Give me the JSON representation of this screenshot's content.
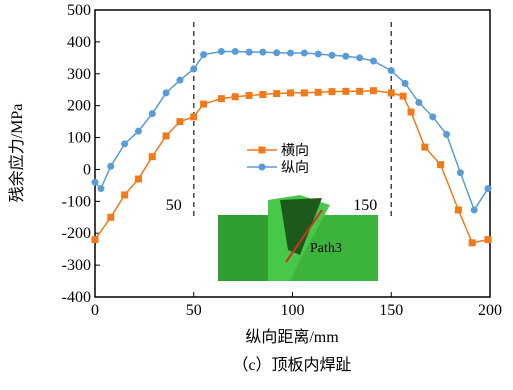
{
  "chart_data": {
    "type": "line",
    "x_label": "纵向距离/mm",
    "y_label": "残余应力/MPa",
    "caption": "（c）顶板内焊趾",
    "xlim": [
      0,
      200
    ],
    "xticks": [
      0,
      50,
      100,
      150,
      200
    ],
    "ylim": [
      -400,
      500
    ],
    "yticks": [
      -400,
      -300,
      -200,
      -100,
      0,
      100,
      200,
      300,
      400,
      500
    ],
    "annotations": [
      {
        "text": "50",
        "x": 50
      },
      {
        "text": "150",
        "x": 150
      }
    ],
    "inset_label": "Path3",
    "legend": "center",
    "series": [
      {
        "name": "横向",
        "color": "#f07a1a",
        "marker": "square",
        "x": [
          0,
          8,
          15,
          22,
          29,
          36,
          43,
          50,
          55,
          64,
          71,
          78,
          85,
          92,
          99,
          106,
          113,
          120,
          127,
          134,
          141,
          150,
          156,
          160,
          167,
          175,
          184,
          191,
          199
        ],
        "values": [
          -220,
          -150,
          -80,
          -30,
          40,
          105,
          150,
          165,
          205,
          222,
          228,
          232,
          235,
          238,
          240,
          240,
          242,
          244,
          245,
          245,
          247,
          240,
          230,
          180,
          70,
          15,
          -127,
          -230,
          -220
        ]
      },
      {
        "name": "纵向",
        "color": "#5b9bd5",
        "marker": "circle",
        "x": [
          0,
          3,
          8,
          15,
          22,
          29,
          36,
          43,
          50,
          55,
          64,
          71,
          78,
          85,
          92,
          99,
          106,
          113,
          120,
          127,
          134,
          141,
          150,
          157,
          164,
          171,
          178,
          185,
          192,
          199
        ],
        "values": [
          -40,
          -60,
          10,
          80,
          120,
          175,
          240,
          280,
          315,
          360,
          370,
          370,
          368,
          368,
          366,
          365,
          365,
          362,
          358,
          355,
          350,
          340,
          310,
          270,
          210,
          165,
          110,
          -10,
          -127,
          -60
        ]
      }
    ]
  }
}
